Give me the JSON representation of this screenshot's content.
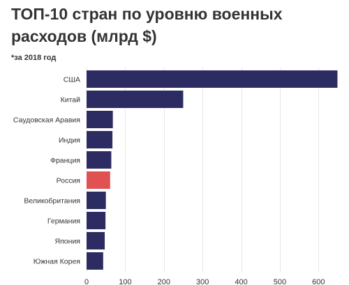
{
  "chart_data": {
    "type": "bar",
    "orientation": "horizontal",
    "title": "ТОП-10 стран по уровню военных расходов (млрд $)",
    "subtitle": "*за 2018 год",
    "xlabel": "",
    "ylabel": "",
    "categories": [
      "США",
      "Китай",
      "Саудовская Аравия",
      "Индия",
      "Франция",
      "Россия",
      "Великобритания",
      "Германия",
      "Япония",
      "Южная Корея"
    ],
    "values": [
      649,
      250,
      68,
      67,
      64,
      61,
      50,
      49,
      47,
      43
    ],
    "xlim": [
      0,
      650
    ],
    "ticks": [
      0,
      100,
      200,
      300,
      400,
      500,
      600
    ],
    "tick_labels": [
      "0",
      "100",
      "200",
      "300",
      "400",
      "500",
      "600"
    ],
    "grid": true,
    "legend": "none",
    "colors": {
      "bar": "#2c2c63",
      "highlight": "#e05252",
      "highlight_category": "Россия",
      "grid": "#e6e6e6",
      "text": "#333333"
    }
  }
}
